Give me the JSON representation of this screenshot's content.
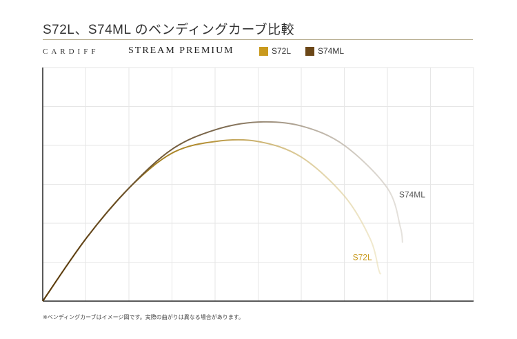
{
  "page": {
    "title": "S72L、S74ML のベンディングカーブ比較",
    "brand": "CARDIFF",
    "product": "STREAM PREMIUM",
    "note": "※ベンディングカーブはイメージ図です。実際の曲がりは異なる場合があります。"
  },
  "chart_data": {
    "type": "line",
    "title": "S72L、S74ML のベンディングカーブ比較",
    "xlabel": "",
    "ylabel": "",
    "xlim": [
      0,
      10
    ],
    "ylim": [
      0,
      6
    ],
    "grid": true,
    "legend": "top-left",
    "series": [
      {
        "name": "S72L",
        "color": "#c99a1e",
        "x": [
          0,
          1,
          2,
          3,
          4,
          5,
          6,
          7,
          7.6,
          7.8,
          7.85
        ],
        "y": [
          0,
          1.6,
          2.9,
          3.8,
          4.1,
          4.1,
          3.7,
          2.7,
          1.6,
          0.8,
          0.7
        ]
      },
      {
        "name": "S74ML",
        "color": "#6b4718",
        "x": [
          0,
          1,
          2,
          3,
          4,
          5,
          6,
          7,
          8,
          8.3,
          8.35
        ],
        "y": [
          0,
          1.6,
          2.9,
          3.9,
          4.4,
          4.6,
          4.5,
          4.0,
          2.9,
          1.9,
          1.5
        ]
      }
    ]
  }
}
